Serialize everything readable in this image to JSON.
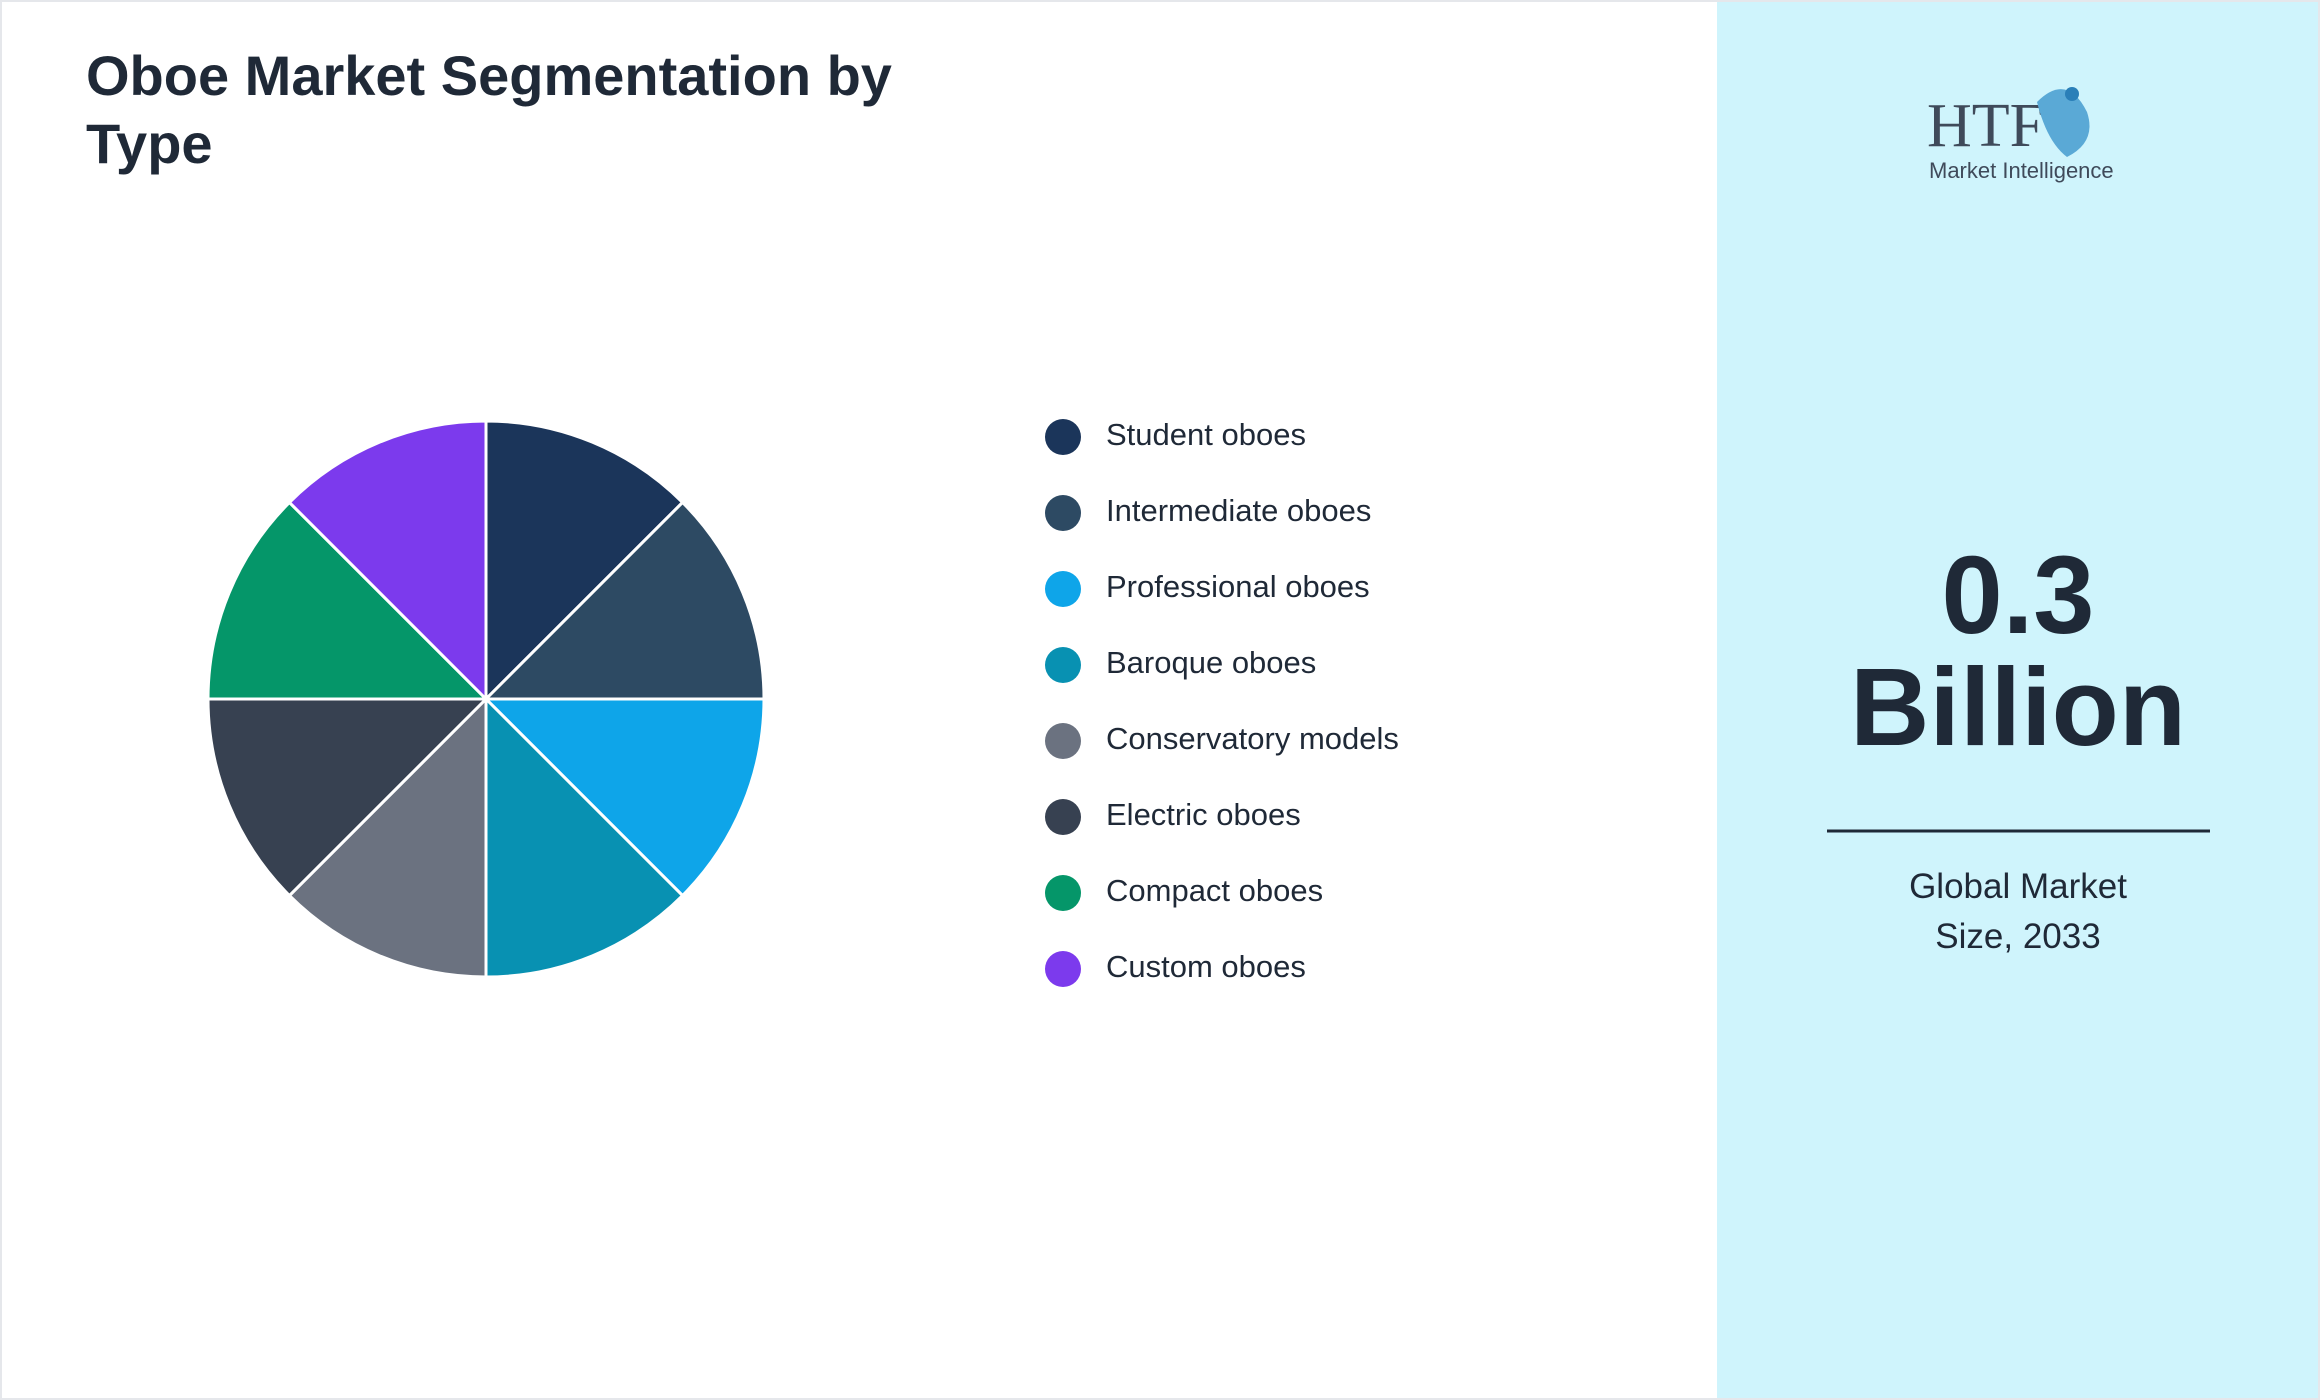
{
  "chart_data": {
    "type": "pie",
    "title": "Oboe Market Segmentation by Type",
    "categories": [
      "Student oboes",
      "Intermediate oboes",
      "Professional oboes",
      "Baroque oboes",
      "Conservatory models",
      "Electric oboes",
      "Compact oboes",
      "Custom oboes"
    ],
    "values": [
      12.5,
      12.5,
      12.5,
      12.5,
      12.5,
      12.5,
      12.5,
      12.5
    ],
    "colors": [
      "#1b355a",
      "#2d4a63",
      "#0ea5e9",
      "#0891b2",
      "#6b7280",
      "#374151",
      "#059669",
      "#7c3aed"
    ]
  },
  "side_panel": {
    "logo": {
      "brand": "HTF",
      "tagline": "Market Intelligence"
    },
    "value": "0.3",
    "unit": "Billion",
    "caption": "Global Market Size, 2033"
  }
}
